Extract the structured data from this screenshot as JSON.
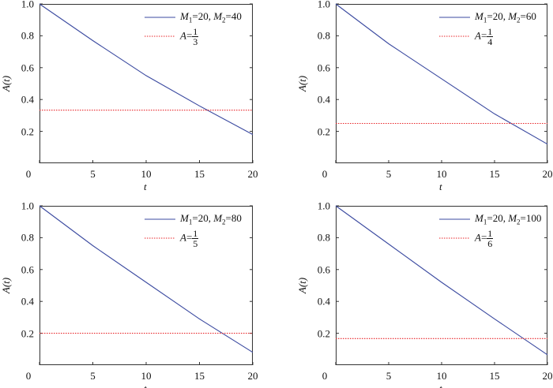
{
  "chart_data": [
    {
      "type": "line",
      "xlabel": "t",
      "ylabel": "A(t)",
      "xlim": [
        0,
        20
      ],
      "ylim": [
        0,
        1
      ],
      "x_ticks": [
        "0",
        "5",
        "10",
        "15",
        "20"
      ],
      "y_ticks": [
        "0.2",
        "0.4",
        "0.6",
        "0.8",
        "1.0"
      ],
      "legend": {
        "m1": "20",
        "m2": "40",
        "frac_num": "1",
        "frac_den": "3"
      },
      "legend_position": "top-right",
      "series": [
        {
          "name": "M1=20, M2=40",
          "color": "#3b4aa0",
          "x": [
            0,
            5,
            10,
            15,
            20
          ],
          "y": [
            1.0,
            0.77,
            0.55,
            0.36,
            0.18
          ]
        },
        {
          "name": "A=1/3",
          "color": "#e8262a",
          "style": "dotted",
          "x": [
            0,
            20
          ],
          "y": [
            0.3333,
            0.3333
          ]
        }
      ]
    },
    {
      "type": "line",
      "xlabel": "t",
      "ylabel": "A(t)",
      "xlim": [
        0,
        20
      ],
      "ylim": [
        0,
        1
      ],
      "x_ticks": [
        "0",
        "5",
        "10",
        "15",
        "20"
      ],
      "y_ticks": [
        "0.2",
        "0.4",
        "0.6",
        "0.8",
        "1.0"
      ],
      "legend": {
        "m1": "20",
        "m2": "60",
        "frac_num": "1",
        "frac_den": "4"
      },
      "legend_position": "top-right",
      "series": [
        {
          "name": "M1=20, M2=60",
          "color": "#3b4aa0",
          "x": [
            0,
            5,
            10,
            15,
            20
          ],
          "y": [
            1.0,
            0.75,
            0.53,
            0.31,
            0.12
          ]
        },
        {
          "name": "A=1/4",
          "color": "#e8262a",
          "style": "dotted",
          "x": [
            0,
            20
          ],
          "y": [
            0.25,
            0.25
          ]
        }
      ]
    },
    {
      "type": "line",
      "xlabel": "t",
      "ylabel": "A(t)",
      "xlim": [
        0,
        20
      ],
      "ylim": [
        0,
        1
      ],
      "x_ticks": [
        "0",
        "5",
        "10",
        "15",
        "20"
      ],
      "y_ticks": [
        "0.2",
        "0.4",
        "0.6",
        "0.8",
        "1.0"
      ],
      "legend": {
        "m1": "20",
        "m2": "80",
        "frac_num": "1",
        "frac_den": "5"
      },
      "legend_position": "top-right",
      "series": [
        {
          "name": "M1=20, M2=80",
          "color": "#3b4aa0",
          "x": [
            0,
            5,
            10,
            15,
            20
          ],
          "y": [
            1.0,
            0.75,
            0.52,
            0.29,
            0.08
          ]
        },
        {
          "name": "A=1/5",
          "color": "#e8262a",
          "style": "dotted",
          "x": [
            0,
            20
          ],
          "y": [
            0.2,
            0.2
          ]
        }
      ]
    },
    {
      "type": "line",
      "xlabel": "t",
      "ylabel": "A(t)",
      "xlim": [
        0,
        20
      ],
      "ylim": [
        0,
        1
      ],
      "x_ticks": [
        "0",
        "5",
        "10",
        "15",
        "20"
      ],
      "y_ticks": [
        "0.2",
        "0.4",
        "0.6",
        "0.8",
        "1.0"
      ],
      "legend": {
        "m1": "20",
        "m2": "100",
        "frac_num": "1",
        "frac_den": "6"
      },
      "legend_position": "top-right",
      "series": [
        {
          "name": "M1=20, M2=100",
          "color": "#3b4aa0",
          "x": [
            0,
            5,
            10,
            15,
            20
          ],
          "y": [
            1.0,
            0.76,
            0.52,
            0.29,
            0.065
          ]
        },
        {
          "name": "A=1/6",
          "color": "#e8262a",
          "style": "dotted",
          "x": [
            0,
            20
          ],
          "y": [
            0.1667,
            0.1667
          ]
        }
      ]
    }
  ]
}
